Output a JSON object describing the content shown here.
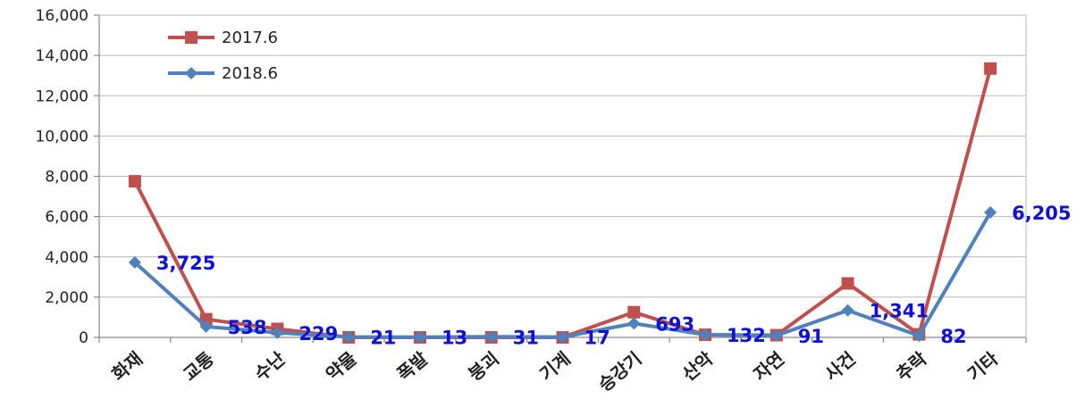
{
  "chart_data": {
    "type": "line",
    "categories": [
      "화재",
      "교통",
      "수난",
      "약물",
      "폭발",
      "붕괴",
      "기계",
      "승강기",
      "산악",
      "자연",
      "사건",
      "추락",
      "기타"
    ],
    "series": [
      {
        "name": "2017.6",
        "color": "#c0504d",
        "marker": "square",
        "values": [
          7750,
          900,
          420,
          0,
          0,
          0,
          0,
          1250,
          130,
          110,
          2680,
          150,
          13350
        ]
      },
      {
        "name": "2018.6",
        "color": "#4f81bd",
        "marker": "diamond",
        "values": [
          3725,
          538,
          229,
          21,
          13,
          31,
          17,
          693,
          132,
          91,
          1341,
          82,
          6205
        ]
      }
    ],
    "data_labels": [
      "3,725",
      "538",
      "229",
      "21",
      "13",
      "31",
      "17",
      "693",
      "132",
      "91",
      "1,341",
      "82",
      "6,205"
    ],
    "y_ticks": [
      "0",
      "2,000",
      "4,000",
      "6,000",
      "8,000",
      "10,000",
      "12,000",
      "14,000",
      "16,000"
    ],
    "ylim": [
      0,
      16000
    ],
    "grid": true,
    "legend_position": "top-left",
    "title": "",
    "xlabel": "",
    "ylabel": ""
  }
}
